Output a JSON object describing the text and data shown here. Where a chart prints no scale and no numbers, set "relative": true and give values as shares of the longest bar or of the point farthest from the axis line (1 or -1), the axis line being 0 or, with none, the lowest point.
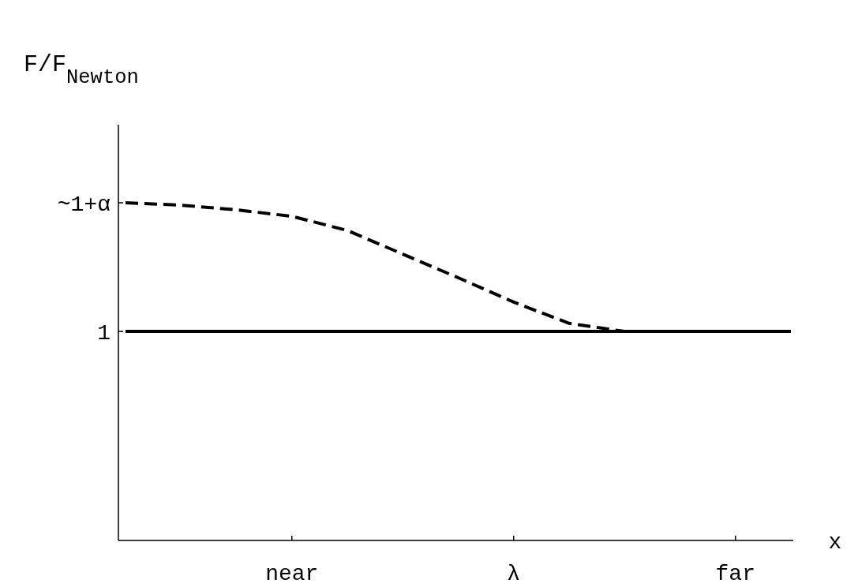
{
  "chart_data": {
    "type": "line",
    "ylabel": "F/F$_{Newton}$",
    "xlabel": "x",
    "relative": true,
    "categories": [
      null,
      null,
      null,
      "near",
      null,
      null,
      null,
      "λ",
      null,
      null,
      null,
      "far",
      null
    ],
    "annotations": [
      "1",
      "~1+α"
    ],
    "grid": false,
    "marker": "none",
    "series": [
      {
        "color": "#000000",
        "line_style": "solid",
        "values": [
          0.619,
          0.619,
          0.619,
          0.619,
          0.619,
          0.619,
          0.619,
          0.619,
          0.619,
          0.619,
          0.619,
          0.619,
          0.619
        ]
      },
      {
        "color": "#000000",
        "line_style": "dashed",
        "values": [
          1.0,
          0.993,
          0.979,
          0.96,
          0.918,
          0.848,
          0.778,
          0.706,
          0.643,
          0.619,
          0.619,
          0.619,
          0.619
        ]
      }
    ]
  }
}
